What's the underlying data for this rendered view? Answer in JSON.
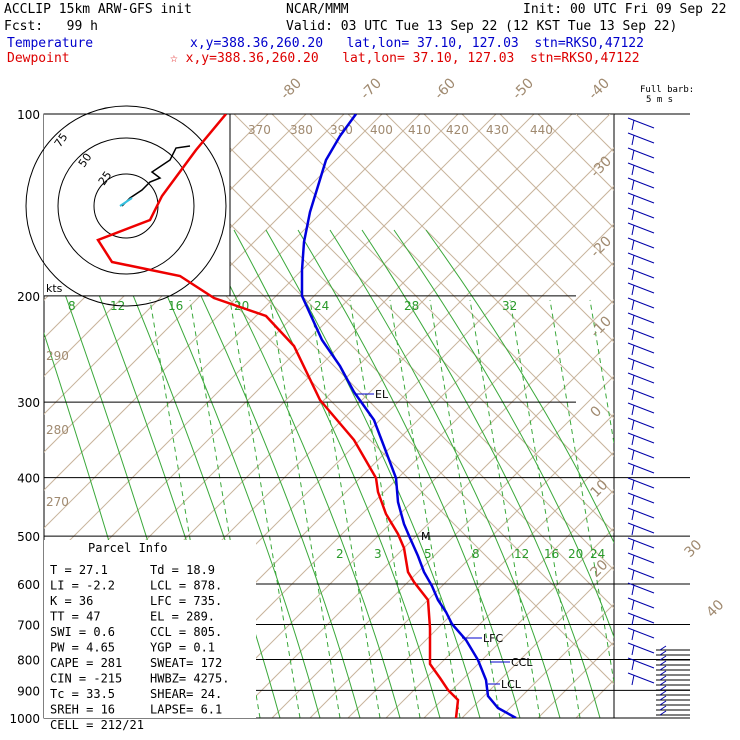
{
  "header": {
    "model": "ACCLIP 15km ARW-GFS init",
    "org": "NCAR/MMM",
    "init": "Init: 00 UTC Fri 09 Sep 22",
    "fcst": "Fcst:   99 h",
    "valid": "Valid: 03 UTC Tue 13 Sep 22 (12 KST Tue 13 Sep 22)",
    "temp_label": "Temperature",
    "temp_loc": "x,y=388.36,260.20   lat,lon= 37.10, 127.03  stn=RKSO,47122",
    "dew_label": "Dewpoint",
    "dew_loc": "x,y=388.36,260.20   lat,lon= 37.10, 127.03  stn=RKSO,47122",
    "barb_label_1": "Full barb:",
    "barb_label_2": "5 m s"
  },
  "chart_data": {
    "type": "line",
    "pressure_levels": [
      100,
      200,
      300,
      400,
      500,
      600,
      700,
      800,
      900,
      1000
    ],
    "isotherm_labels": [
      "-80",
      "-70",
      "-60",
      "-50",
      "-40",
      "-30",
      "-20",
      "-10",
      "0",
      "10",
      "20",
      "30",
      "40"
    ],
    "theta_labels": [
      "370",
      "380",
      "390",
      "400",
      "410",
      "420",
      "430",
      "440",
      "290",
      "280",
      "270"
    ],
    "mixing_ratio_labels_upper": [
      "8",
      "12",
      "16",
      "20",
      "24",
      "28",
      "32"
    ],
    "mixing_ratio_labels_lower": [
      "2",
      "3",
      "5",
      "8",
      "12",
      "16",
      "20",
      "24"
    ],
    "hodograph_rings": [
      "75",
      "50",
      "25"
    ],
    "hodograph_units": "kts",
    "series": [
      {
        "name": "Temperature",
        "color": "#0000cc"
      },
      {
        "name": "Dewpoint",
        "color": "#dd0000"
      }
    ],
    "levels_marked": [
      "EL",
      "LFC",
      "CCL",
      "LCL",
      "M"
    ],
    "parcel_info": {
      "title": "Parcel Info",
      "rows": [
        [
          "T  =    27.1",
          "Td =   18.9"
        ],
        [
          "LI =    -2.2",
          "LCL =  878."
        ],
        [
          "K  =      36",
          "LFC =  735."
        ],
        [
          "TT =      47",
          "EL  =  289."
        ],
        [
          "SWI =    0.6",
          "CCL =  805."
        ],
        [
          "PW =    4.65",
          "YGP =   0.1"
        ],
        [
          "CAPE =   281",
          "SWEAT=  172"
        ],
        [
          "CIN =   -215",
          "HWBZ= 4275."
        ],
        [
          "Tc =    33.5",
          "SHEAR=  24."
        ],
        [
          "SREH =    16",
          "LAPSE=  6.1"
        ],
        [
          "CELL = 212/21",
          ""
        ]
      ]
    }
  }
}
